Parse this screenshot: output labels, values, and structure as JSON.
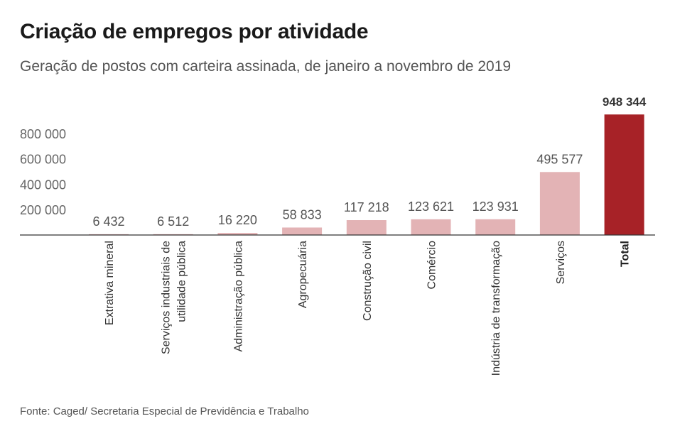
{
  "title": "Criação de empregos por atividade",
  "subtitle": "Geração de postos com carteira assinada, de janeiro a novembro de 2019",
  "source": "Fonte: Caged/ Secretaria Especial de Previdência e Trabalho",
  "chart_data": {
    "type": "bar",
    "categories": [
      "Extrativa mineral",
      "Serviços industriais de\nutilidade pública",
      "Administração pública",
      "Agropecuária",
      "Construção civil",
      "Comércio",
      "Indústria de transformação",
      "Serviços",
      "Total"
    ],
    "values": [
      6432,
      6512,
      16220,
      58833,
      117218,
      123621,
      123931,
      495577,
      948344
    ],
    "value_labels": [
      "6 432",
      "6 512",
      "16 220",
      "58 833",
      "117 218",
      "123 621",
      "123 931",
      "495 577",
      "948 344"
    ],
    "highlighted_category": "Total",
    "y_ticks": [
      200000,
      400000,
      600000,
      800000
    ],
    "y_tick_labels": [
      "200 000",
      "400 000",
      "600 000",
      "800 000"
    ],
    "ylim": [
      0,
      1000000
    ],
    "grid": false,
    "colors": {
      "bar": "#e3b3b5",
      "highlight": "#a72227",
      "axis": "#333333"
    }
  }
}
